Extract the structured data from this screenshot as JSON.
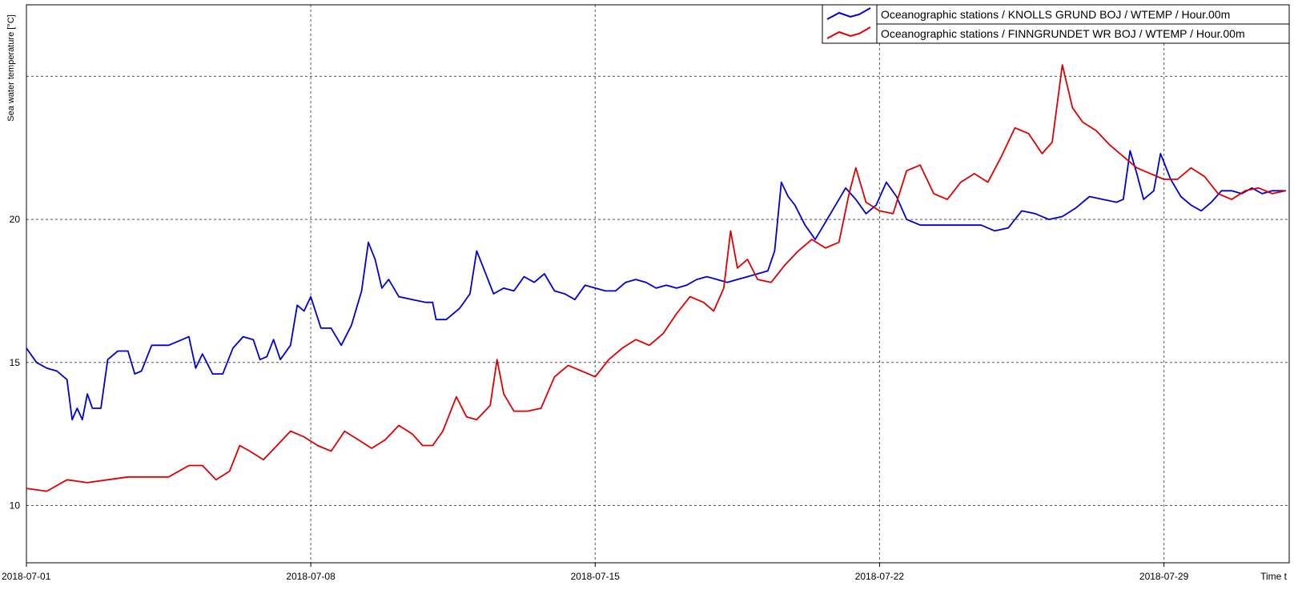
{
  "chart_data": {
    "type": "line",
    "title": "",
    "ylabel": "Sea water temperature [°C]",
    "xlabel": "Time t",
    "xlim": [
      "2018-07-01T00:00",
      "2018-08-01T02:00"
    ],
    "ylim": [
      8,
      27.5
    ],
    "grid": true,
    "legend_position": "top-right",
    "yticks": [
      10,
      15,
      20
    ],
    "xticks": [
      "2018-07-01",
      "2018-07-08",
      "2018-07-15",
      "2018-07-22",
      "2018-07-29"
    ],
    "series": [
      {
        "name": "Oceanographic stations / KNOLLS GRUND BOJ / WTEMP / Hour.00m",
        "color": "#0000cc",
        "points": [
          [
            "2018-07-01T00:00",
            15.5
          ],
          [
            "2018-07-01T06:00",
            15.0
          ],
          [
            "2018-07-01T12:00",
            14.8
          ],
          [
            "2018-07-01T18:00",
            14.7
          ],
          [
            "2018-07-02T00:00",
            14.4
          ],
          [
            "2018-07-02T03:00",
            13.0
          ],
          [
            "2018-07-02T06:00",
            13.4
          ],
          [
            "2018-07-02T09:00",
            13.0
          ],
          [
            "2018-07-02T12:00",
            13.9
          ],
          [
            "2018-07-02T15:00",
            13.4
          ],
          [
            "2018-07-02T20:00",
            13.4
          ],
          [
            "2018-07-03T00:00",
            15.1
          ],
          [
            "2018-07-03T06:00",
            15.4
          ],
          [
            "2018-07-03T12:00",
            15.4
          ],
          [
            "2018-07-03T16:00",
            14.6
          ],
          [
            "2018-07-03T20:00",
            14.7
          ],
          [
            "2018-07-04T02:00",
            15.6
          ],
          [
            "2018-07-04T12:00",
            15.6
          ],
          [
            "2018-07-04T20:00",
            15.8
          ],
          [
            "2018-07-05T00:00",
            15.9
          ],
          [
            "2018-07-05T04:00",
            14.8
          ],
          [
            "2018-07-05T08:00",
            15.3
          ],
          [
            "2018-07-05T14:00",
            14.6
          ],
          [
            "2018-07-05T20:00",
            14.6
          ],
          [
            "2018-07-06T02:00",
            15.5
          ],
          [
            "2018-07-06T08:00",
            15.9
          ],
          [
            "2018-07-06T14:00",
            15.8
          ],
          [
            "2018-07-06T18:00",
            15.1
          ],
          [
            "2018-07-06T22:00",
            15.2
          ],
          [
            "2018-07-07T02:00",
            15.8
          ],
          [
            "2018-07-07T06:00",
            15.1
          ],
          [
            "2018-07-07T12:00",
            15.6
          ],
          [
            "2018-07-07T16:00",
            17.0
          ],
          [
            "2018-07-07T20:00",
            16.8
          ],
          [
            "2018-07-08T00:00",
            17.3
          ],
          [
            "2018-07-08T06:00",
            16.2
          ],
          [
            "2018-07-08T12:00",
            16.2
          ],
          [
            "2018-07-08T18:00",
            15.6
          ],
          [
            "2018-07-09T00:00",
            16.3
          ],
          [
            "2018-07-09T06:00",
            17.5
          ],
          [
            "2018-07-09T10:00",
            19.2
          ],
          [
            "2018-07-09T14:00",
            18.6
          ],
          [
            "2018-07-09T18:00",
            17.6
          ],
          [
            "2018-07-09T22:00",
            17.9
          ],
          [
            "2018-07-10T04:00",
            17.3
          ],
          [
            "2018-07-10T12:00",
            17.2
          ],
          [
            "2018-07-10T20:00",
            17.1
          ],
          [
            "2018-07-11T00:00",
            17.1
          ],
          [
            "2018-07-11T02:00",
            16.5
          ],
          [
            "2018-07-11T08:00",
            16.5
          ],
          [
            "2018-07-11T16:00",
            16.9
          ],
          [
            "2018-07-11T22:00",
            17.4
          ],
          [
            "2018-07-12T02:00",
            18.9
          ],
          [
            "2018-07-12T06:00",
            18.3
          ],
          [
            "2018-07-12T12:00",
            17.4
          ],
          [
            "2018-07-12T18:00",
            17.6
          ],
          [
            "2018-07-13T00:00",
            17.5
          ],
          [
            "2018-07-13T06:00",
            18.0
          ],
          [
            "2018-07-13T12:00",
            17.8
          ],
          [
            "2018-07-13T18:00",
            18.1
          ],
          [
            "2018-07-14T00:00",
            17.5
          ],
          [
            "2018-07-14T06:00",
            17.4
          ],
          [
            "2018-07-14T12:00",
            17.2
          ],
          [
            "2018-07-14T18:00",
            17.7
          ],
          [
            "2018-07-15T00:00",
            17.6
          ],
          [
            "2018-07-15T06:00",
            17.5
          ],
          [
            "2018-07-15T12:00",
            17.5
          ],
          [
            "2018-07-15T18:00",
            17.8
          ],
          [
            "2018-07-16T00:00",
            17.9
          ],
          [
            "2018-07-16T06:00",
            17.8
          ],
          [
            "2018-07-16T12:00",
            17.6
          ],
          [
            "2018-07-16T18:00",
            17.7
          ],
          [
            "2018-07-17T00:00",
            17.6
          ],
          [
            "2018-07-17T06:00",
            17.7
          ],
          [
            "2018-07-17T12:00",
            17.9
          ],
          [
            "2018-07-17T18:00",
            18.0
          ],
          [
            "2018-07-18T00:00",
            17.9
          ],
          [
            "2018-07-18T06:00",
            17.8
          ],
          [
            "2018-07-18T12:00",
            17.9
          ],
          [
            "2018-07-18T18:00",
            18.0
          ],
          [
            "2018-07-19T00:00",
            18.1
          ],
          [
            "2018-07-19T06:00",
            18.2
          ],
          [
            "2018-07-19T10:00",
            18.9
          ],
          [
            "2018-07-19T14:00",
            21.3
          ],
          [
            "2018-07-19T18:00",
            20.8
          ],
          [
            "2018-07-19T22:00",
            20.5
          ],
          [
            "2018-07-20T04:00",
            19.8
          ],
          [
            "2018-07-20T10:00",
            19.3
          ],
          [
            "2018-07-20T16:00",
            19.9
          ],
          [
            "2018-07-20T22:00",
            20.5
          ],
          [
            "2018-07-21T04:00",
            21.1
          ],
          [
            "2018-07-21T10:00",
            20.7
          ],
          [
            "2018-07-21T16:00",
            20.2
          ],
          [
            "2018-07-21T22:00",
            20.5
          ],
          [
            "2018-07-22T04:00",
            21.3
          ],
          [
            "2018-07-22T10:00",
            20.8
          ],
          [
            "2018-07-22T16:00",
            20.0
          ],
          [
            "2018-07-23T00:00",
            19.8
          ],
          [
            "2018-07-23T12:00",
            19.8
          ],
          [
            "2018-07-24T00:00",
            19.8
          ],
          [
            "2018-07-24T12:00",
            19.8
          ],
          [
            "2018-07-24T20:00",
            19.6
          ],
          [
            "2018-07-25T04:00",
            19.7
          ],
          [
            "2018-07-25T12:00",
            20.3
          ],
          [
            "2018-07-25T20:00",
            20.2
          ],
          [
            "2018-07-26T04:00",
            20.0
          ],
          [
            "2018-07-26T12:00",
            20.1
          ],
          [
            "2018-07-26T20:00",
            20.4
          ],
          [
            "2018-07-27T04:00",
            20.8
          ],
          [
            "2018-07-27T12:00",
            20.7
          ],
          [
            "2018-07-27T20:00",
            20.6
          ],
          [
            "2018-07-28T00:00",
            20.7
          ],
          [
            "2018-07-28T04:00",
            22.4
          ],
          [
            "2018-07-28T08:00",
            21.6
          ],
          [
            "2018-07-28T12:00",
            20.7
          ],
          [
            "2018-07-28T18:00",
            21.0
          ],
          [
            "2018-07-28T22:00",
            22.3
          ],
          [
            "2018-07-29T04:00",
            21.4
          ],
          [
            "2018-07-29T10:00",
            20.8
          ],
          [
            "2018-07-29T16:00",
            20.5
          ],
          [
            "2018-07-29T22:00",
            20.3
          ],
          [
            "2018-07-30T04:00",
            20.6
          ],
          [
            "2018-07-30T10:00",
            21.0
          ],
          [
            "2018-07-30T16:00",
            21.0
          ],
          [
            "2018-07-30T22:00",
            20.9
          ],
          [
            "2018-07-31T04:00",
            21.1
          ],
          [
            "2018-07-31T10:00",
            20.9
          ],
          [
            "2018-07-31T16:00",
            21.0
          ],
          [
            "2018-08-01T00:00",
            21.0
          ]
        ]
      },
      {
        "name": "Oceanographic stations / FINNGRUNDET WR BOJ / WTEMP / Hour.00m",
        "color": "#dd0000",
        "points": [
          [
            "2018-07-01T00:00",
            10.6
          ],
          [
            "2018-07-01T12:00",
            10.5
          ],
          [
            "2018-07-02T00:00",
            10.9
          ],
          [
            "2018-07-02T12:00",
            10.8
          ],
          [
            "2018-07-03T00:00",
            10.9
          ],
          [
            "2018-07-03T12:00",
            11.0
          ],
          [
            "2018-07-04T00:00",
            11.0
          ],
          [
            "2018-07-04T12:00",
            11.0
          ],
          [
            "2018-07-05T00:00",
            11.4
          ],
          [
            "2018-07-05T08:00",
            11.4
          ],
          [
            "2018-07-05T16:00",
            10.9
          ],
          [
            "2018-07-06T00:00",
            11.2
          ],
          [
            "2018-07-06T06:00",
            12.1
          ],
          [
            "2018-07-06T12:00",
            11.9
          ],
          [
            "2018-07-06T20:00",
            11.6
          ],
          [
            "2018-07-07T04:00",
            12.1
          ],
          [
            "2018-07-07T12:00",
            12.6
          ],
          [
            "2018-07-07T20:00",
            12.4
          ],
          [
            "2018-07-08T04:00",
            12.1
          ],
          [
            "2018-07-08T12:00",
            11.9
          ],
          [
            "2018-07-08T20:00",
            12.6
          ],
          [
            "2018-07-09T04:00",
            12.3
          ],
          [
            "2018-07-09T12:00",
            12.0
          ],
          [
            "2018-07-09T20:00",
            12.3
          ],
          [
            "2018-07-10T04:00",
            12.8
          ],
          [
            "2018-07-10T12:00",
            12.5
          ],
          [
            "2018-07-10T18:00",
            12.1
          ],
          [
            "2018-07-11T00:00",
            12.1
          ],
          [
            "2018-07-11T06:00",
            12.6
          ],
          [
            "2018-07-11T14:00",
            13.8
          ],
          [
            "2018-07-11T20:00",
            13.1
          ],
          [
            "2018-07-12T02:00",
            13.0
          ],
          [
            "2018-07-12T10:00",
            13.5
          ],
          [
            "2018-07-12T14:00",
            15.1
          ],
          [
            "2018-07-12T18:00",
            13.9
          ],
          [
            "2018-07-13T00:00",
            13.3
          ],
          [
            "2018-07-13T08:00",
            13.3
          ],
          [
            "2018-07-13T16:00",
            13.4
          ],
          [
            "2018-07-14T00:00",
            14.5
          ],
          [
            "2018-07-14T08:00",
            14.9
          ],
          [
            "2018-07-14T16:00",
            14.7
          ],
          [
            "2018-07-15T00:00",
            14.5
          ],
          [
            "2018-07-15T08:00",
            15.1
          ],
          [
            "2018-07-15T16:00",
            15.5
          ],
          [
            "2018-07-16T00:00",
            15.8
          ],
          [
            "2018-07-16T08:00",
            15.6
          ],
          [
            "2018-07-16T16:00",
            16.0
          ],
          [
            "2018-07-17T00:00",
            16.7
          ],
          [
            "2018-07-17T08:00",
            17.3
          ],
          [
            "2018-07-17T16:00",
            17.1
          ],
          [
            "2018-07-17T22:00",
            16.8
          ],
          [
            "2018-07-18T04:00",
            17.6
          ],
          [
            "2018-07-18T08:00",
            19.6
          ],
          [
            "2018-07-18T12:00",
            18.3
          ],
          [
            "2018-07-18T18:00",
            18.6
          ],
          [
            "2018-07-19T00:00",
            17.9
          ],
          [
            "2018-07-19T08:00",
            17.8
          ],
          [
            "2018-07-19T16:00",
            18.4
          ],
          [
            "2018-07-20T00:00",
            18.9
          ],
          [
            "2018-07-20T08:00",
            19.3
          ],
          [
            "2018-07-20T16:00",
            19.0
          ],
          [
            "2018-07-21T00:00",
            19.2
          ],
          [
            "2018-07-21T06:00",
            20.9
          ],
          [
            "2018-07-21T10:00",
            21.8
          ],
          [
            "2018-07-21T16:00",
            20.6
          ],
          [
            "2018-07-22T00:00",
            20.3
          ],
          [
            "2018-07-22T08:00",
            20.2
          ],
          [
            "2018-07-22T16:00",
            21.7
          ],
          [
            "2018-07-23T00:00",
            21.9
          ],
          [
            "2018-07-23T08:00",
            20.9
          ],
          [
            "2018-07-23T16:00",
            20.7
          ],
          [
            "2018-07-24T00:00",
            21.3
          ],
          [
            "2018-07-24T08:00",
            21.6
          ],
          [
            "2018-07-24T16:00",
            21.3
          ],
          [
            "2018-07-25T00:00",
            22.2
          ],
          [
            "2018-07-25T08:00",
            23.2
          ],
          [
            "2018-07-25T16:00",
            23.0
          ],
          [
            "2018-07-26T00:00",
            22.3
          ],
          [
            "2018-07-26T06:00",
            22.7
          ],
          [
            "2018-07-26T12:00",
            25.4
          ],
          [
            "2018-07-26T18:00",
            23.9
          ],
          [
            "2018-07-27T00:00",
            23.4
          ],
          [
            "2018-07-27T08:00",
            23.1
          ],
          [
            "2018-07-27T16:00",
            22.6
          ],
          [
            "2018-07-28T00:00",
            22.2
          ],
          [
            "2018-07-28T08:00",
            21.8
          ],
          [
            "2018-07-28T16:00",
            21.6
          ],
          [
            "2018-07-29T00:00",
            21.4
          ],
          [
            "2018-07-29T08:00",
            21.4
          ],
          [
            "2018-07-29T16:00",
            21.8
          ],
          [
            "2018-07-30T00:00",
            21.5
          ],
          [
            "2018-07-30T08:00",
            20.9
          ],
          [
            "2018-07-30T16:00",
            20.7
          ],
          [
            "2018-07-31T00:00",
            21.0
          ],
          [
            "2018-07-31T08:00",
            21.1
          ],
          [
            "2018-07-31T16:00",
            20.9
          ],
          [
            "2018-08-01T00:00",
            21.0
          ]
        ]
      }
    ]
  }
}
